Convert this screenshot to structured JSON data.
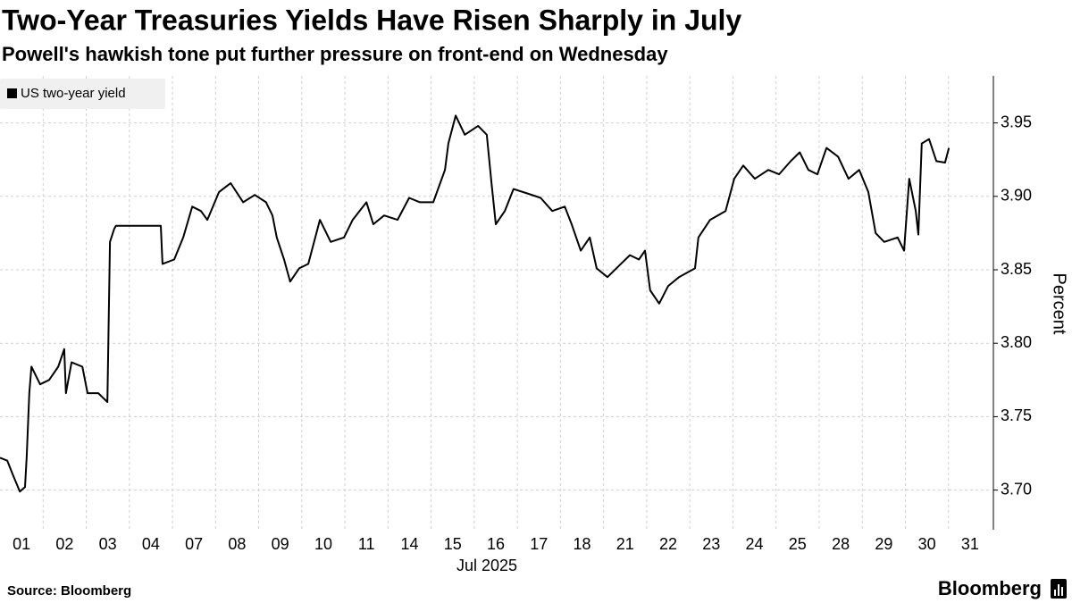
{
  "chart_data": {
    "type": "line",
    "title": "Two-Year Treasuries Yields Have Risen Sharply in July",
    "subtitle": "Powell's hawkish tone put further pressure on front-end on Wednesday",
    "x_label": "Jul 2025",
    "y_label": "Percent",
    "source": "Source: Bloomberg",
    "brand": "Bloomberg",
    "legend": "top-left",
    "grid": true,
    "x": [
      0,
      0.17,
      0.29,
      0.46,
      0.58,
      0.62,
      0.68,
      0.73,
      0.93,
      1.14,
      1.35,
      1.49,
      1.53,
      1.66,
      1.91,
      2.03,
      2.28,
      2.49,
      2.55,
      2.65,
      2.69,
      3.73,
      3.77,
      4.04,
      4.25,
      4.46,
      4.66,
      4.81,
      5.08,
      5.35,
      5.64,
      5.91,
      6.17,
      6.32,
      6.42,
      6.59,
      6.73,
      6.94,
      7.15,
      7.42,
      7.67,
      7.98,
      8.18,
      8.5,
      8.66,
      8.91,
      9.22,
      9.49,
      9.74,
      10.05,
      10.32,
      10.4,
      10.57,
      10.78,
      11.09,
      11.29,
      11.4,
      11.5,
      11.71,
      11.91,
      12.23,
      12.54,
      12.81,
      13.1,
      13.26,
      13.47,
      13.68,
      13.84,
      14.09,
      14.4,
      14.61,
      14.82,
      14.96,
      15.08,
      15.29,
      15.5,
      15.75,
      16.12,
      16.2,
      16.47,
      16.83,
      17.03,
      17.24,
      17.51,
      17.82,
      18.07,
      18.34,
      18.55,
      18.75,
      18.96,
      19.17,
      19.44,
      19.68,
      19.93,
      20.14,
      20.31,
      20.51,
      20.82,
      20.97,
      21.09,
      21.24,
      21.3,
      21.38,
      21.55,
      21.72,
      21.92,
      22.01
    ],
    "series": [
      {
        "name": "US two-year yield",
        "color": "#000000",
        "values": [
          3.722,
          3.72,
          3.711,
          3.699,
          3.702,
          3.723,
          3.766,
          3.784,
          3.772,
          3.775,
          3.784,
          3.796,
          3.766,
          3.787,
          3.784,
          3.766,
          3.766,
          3.76,
          3.869,
          3.878,
          3.88,
          3.88,
          3.854,
          3.857,
          3.872,
          3.893,
          3.89,
          3.884,
          3.903,
          3.909,
          3.896,
          3.901,
          3.896,
          3.887,
          3.872,
          3.857,
          3.842,
          3.851,
          3.854,
          3.884,
          3.869,
          3.872,
          3.884,
          3.896,
          3.881,
          3.887,
          3.884,
          3.899,
          3.896,
          3.896,
          3.918,
          3.936,
          3.955,
          3.942,
          3.948,
          3.942,
          3.909,
          3.881,
          3.89,
          3.905,
          3.902,
          3.899,
          3.89,
          3.893,
          3.881,
          3.863,
          3.872,
          3.851,
          3.845,
          3.854,
          3.86,
          3.857,
          3.863,
          3.836,
          3.827,
          3.839,
          3.845,
          3.851,
          3.872,
          3.884,
          3.89,
          3.912,
          3.921,
          3.912,
          3.918,
          3.915,
          3.924,
          3.93,
          3.918,
          3.915,
          3.933,
          3.927,
          3.912,
          3.918,
          3.903,
          3.875,
          3.869,
          3.872,
          3.863,
          3.912,
          3.89,
          3.874,
          3.936,
          3.939,
          3.924,
          3.923,
          3.933
        ]
      }
    ],
    "xlim": [
      0,
      23
    ],
    "xticks": [
      {
        "value": 0,
        "label": "01"
      },
      {
        "value": 1,
        "label": "02"
      },
      {
        "value": 2,
        "label": "03"
      },
      {
        "value": 3,
        "label": "04"
      },
      {
        "value": 4,
        "label": "07"
      },
      {
        "value": 5,
        "label": "08"
      },
      {
        "value": 6,
        "label": "09"
      },
      {
        "value": 7,
        "label": "10"
      },
      {
        "value": 8,
        "label": "11"
      },
      {
        "value": 9,
        "label": "14"
      },
      {
        "value": 10,
        "label": "15"
      },
      {
        "value": 11,
        "label": "16"
      },
      {
        "value": 12,
        "label": "17"
      },
      {
        "value": 13,
        "label": "18"
      },
      {
        "value": 14,
        "label": "21"
      },
      {
        "value": 15,
        "label": "22"
      },
      {
        "value": 16,
        "label": "23"
      },
      {
        "value": 17,
        "label": "24"
      },
      {
        "value": 18,
        "label": "25"
      },
      {
        "value": 19,
        "label": "28"
      },
      {
        "value": 20,
        "label": "29"
      },
      {
        "value": 21,
        "label": "30"
      },
      {
        "value": 22,
        "label": "31"
      }
    ],
    "ylim": [
      3.673,
      3.982
    ],
    "yticks": [
      {
        "value": 3.7,
        "label": "3.70"
      },
      3.75,
      {
        "value": 3.8,
        "label": "3.80"
      },
      3.85,
      {
        "value": 3.9,
        "label": "3.90"
      },
      3.95
    ]
  }
}
